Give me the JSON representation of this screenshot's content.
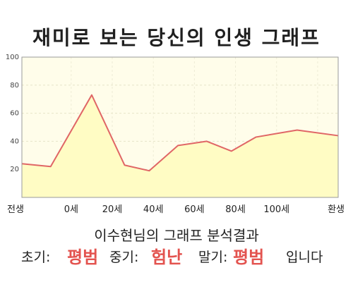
{
  "title": "재미로 보는 당신의 인생 그래프",
  "subtitle": "이수현님의 그래프 분석결과",
  "result": {
    "early_label": "초기:",
    "early_value": "평범",
    "middle_label": "중기:",
    "middle_value": "험난",
    "late_label": "말기:",
    "late_value": "평범",
    "suffix": "입니다"
  },
  "colors": {
    "line": "#e06666",
    "fill": "#fffcc4",
    "plot_bg": "#fffdea",
    "accent": "#e3534f"
  },
  "chart_data": {
    "type": "area",
    "x": [
      0,
      7,
      17,
      25,
      31,
      38,
      45,
      51,
      57,
      67,
      77
    ],
    "values": [
      24,
      22,
      73,
      23,
      19,
      37,
      40,
      33,
      43,
      48,
      44
    ],
    "x_ticks": [
      {
        "x": 0,
        "label": "전생"
      },
      {
        "x": 12,
        "label": "0세"
      },
      {
        "x": 22,
        "label": "20세"
      },
      {
        "x": 32,
        "label": "40세"
      },
      {
        "x": 42,
        "label": "60세"
      },
      {
        "x": 52,
        "label": "80세"
      },
      {
        "x": 62,
        "label": "100세"
      },
      {
        "x": 72,
        "label": "환생"
      }
    ],
    "xlim": [
      0,
      77
    ],
    "ylim": [
      0,
      100
    ],
    "y_ticks": [
      20,
      40,
      60,
      80,
      100
    ],
    "grid": true
  }
}
